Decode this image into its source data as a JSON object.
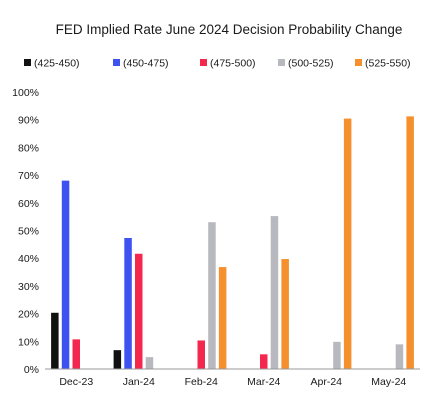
{
  "chart_data": {
    "type": "bar",
    "title": "FED Implied Rate June 2024 Decision Probability Change",
    "xlabel": "",
    "ylabel": "",
    "categories": [
      "Dec-23",
      "Jan-24",
      "Feb-24",
      "Mar-24",
      "Apr-24",
      "May-24"
    ],
    "ylim": [
      0,
      100
    ],
    "y_ticks": [
      "0%",
      "10%",
      "20%",
      "30%",
      "40%",
      "50%",
      "60%",
      "70%",
      "80%",
      "90%",
      "100%"
    ],
    "grid": false,
    "legend_position": "top",
    "series": [
      {
        "name": "(425-450)",
        "color": "#111111",
        "values": [
          20.3,
          6.8,
          0,
          0,
          0,
          0
        ]
      },
      {
        "name": "(450-475)",
        "color": "#3d52f0",
        "values": [
          68.0,
          47.3,
          0,
          0,
          0,
          0
        ]
      },
      {
        "name": "(475-500)",
        "color": "#f4284f",
        "values": [
          10.7,
          41.6,
          10.3,
          5.3,
          0,
          0
        ]
      },
      {
        "name": "(500-525)",
        "color": "#b8b8bf",
        "values": [
          0,
          4.3,
          53.0,
          55.2,
          9.8,
          8.9
        ]
      },
      {
        "name": "(525-550)",
        "color": "#f5902c",
        "values": [
          0,
          0,
          36.8,
          39.7,
          90.4,
          91.2
        ]
      }
    ]
  }
}
